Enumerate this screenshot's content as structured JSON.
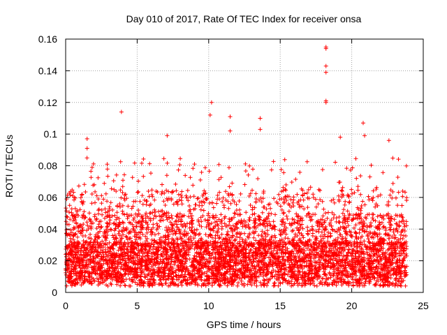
{
  "chart_data": {
    "type": "scatter",
    "title": "Day 010 of 2017, Rate Of TEC Index for receiver onsa",
    "xlabel": "GPS time / hours",
    "ylabel": "ROTI / TECUs",
    "xlim": [
      0,
      25
    ],
    "ylim": [
      0,
      0.16
    ],
    "xticks": [
      0,
      5,
      10,
      15,
      20,
      25
    ],
    "xtick_labels": [
      "0",
      "5",
      "10",
      "15",
      "20",
      "25"
    ],
    "yticks": [
      0,
      0.02,
      0.04,
      0.06,
      0.08,
      0.1,
      0.12,
      0.14,
      0.16
    ],
    "ytick_labels": [
      "0",
      "0.02",
      "0.04",
      "0.06",
      "0.08",
      "0.1",
      "0.12",
      "0.14",
      "0.16"
    ],
    "grid": true,
    "marker": "+",
    "marker_color": "#ff0000",
    "series": [
      {
        "name": "ROTI",
        "note": "dense cloud of points between 0.005 and ~0.07 TECU/s across 0-23.8 h; notable outliers listed below",
        "outliers": [
          {
            "x": 1.5,
            "y": 0.097
          },
          {
            "x": 1.5,
            "y": 0.091
          },
          {
            "x": 3.9,
            "y": 0.114
          },
          {
            "x": 7.1,
            "y": 0.099
          },
          {
            "x": 10.2,
            "y": 0.12
          },
          {
            "x": 10.1,
            "y": 0.112
          },
          {
            "x": 11.5,
            "y": 0.111
          },
          {
            "x": 11.5,
            "y": 0.102
          },
          {
            "x": 13.6,
            "y": 0.11
          },
          {
            "x": 13.6,
            "y": 0.103
          },
          {
            "x": 18.2,
            "y": 0.155
          },
          {
            "x": 18.2,
            "y": 0.154
          },
          {
            "x": 18.2,
            "y": 0.143
          },
          {
            "x": 18.2,
            "y": 0.139
          },
          {
            "x": 18.2,
            "y": 0.121
          },
          {
            "x": 18.2,
            "y": 0.12
          },
          {
            "x": 20.8,
            "y": 0.107
          },
          {
            "x": 20.9,
            "y": 0.099
          },
          {
            "x": 22.6,
            "y": 0.096
          },
          {
            "x": 19.2,
            "y": 0.098
          }
        ]
      }
    ]
  }
}
